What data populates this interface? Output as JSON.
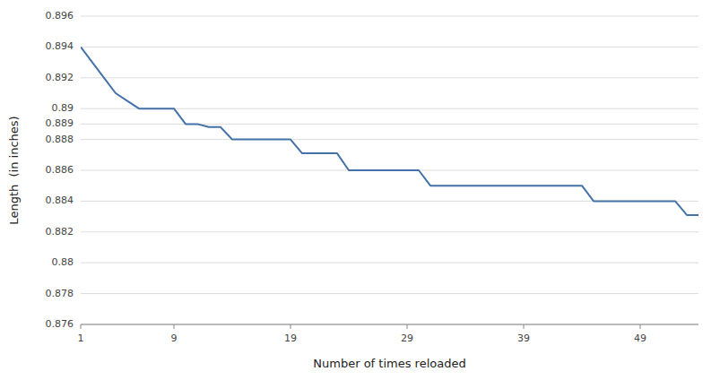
{
  "chart_data": {
    "type": "line",
    "x": [
      1,
      2,
      3,
      4,
      5,
      6,
      7,
      8,
      9,
      10,
      11,
      12,
      13,
      14,
      15,
      16,
      17,
      18,
      19,
      20,
      21,
      22,
      23,
      24,
      25,
      26,
      27,
      28,
      29,
      30,
      31,
      32,
      33,
      34,
      35,
      36,
      37,
      38,
      39,
      40,
      41,
      42,
      43,
      44,
      45,
      46,
      47,
      48,
      49,
      50,
      51,
      52,
      53,
      54
    ],
    "values": [
      0.894,
      0.893,
      0.892,
      0.891,
      0.8905,
      0.89,
      0.89,
      0.89,
      0.89,
      0.889,
      0.889,
      0.8888,
      0.8888,
      0.888,
      0.888,
      0.888,
      0.888,
      0.888,
      0.888,
      0.8871,
      0.8871,
      0.8871,
      0.8871,
      0.886,
      0.886,
      0.886,
      0.886,
      0.886,
      0.886,
      0.886,
      0.885,
      0.885,
      0.885,
      0.885,
      0.885,
      0.885,
      0.885,
      0.885,
      0.885,
      0.885,
      0.885,
      0.885,
      0.885,
      0.885,
      0.884,
      0.884,
      0.884,
      0.884,
      0.884,
      0.884,
      0.884,
      0.884,
      0.8831,
      0.8831
    ],
    "color": "#4472a8",
    "x_label": "Number of times reloaded",
    "y_label": "Length  (in inches)",
    "xlim": [
      1,
      54
    ],
    "ylim": [
      0.876,
      0.896
    ],
    "xticks": [
      1,
      9,
      19,
      29,
      39,
      49
    ],
    "yticks": [
      0.876,
      0.878,
      0.88,
      0.882,
      0.884,
      0.886,
      0.888,
      0.889,
      0.89,
      0.892,
      0.894,
      0.896
    ],
    "grid": true
  }
}
